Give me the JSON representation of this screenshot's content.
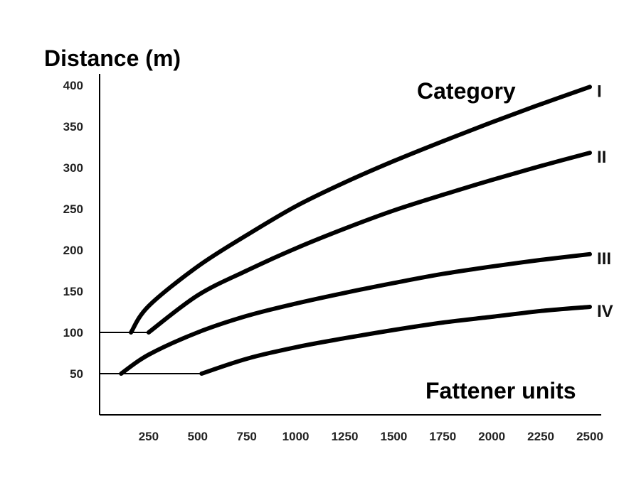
{
  "chart_data": {
    "type": "line",
    "title": "",
    "ylabel": "Distance (m)",
    "xlabel": "Fattener units",
    "legend_title": "Category",
    "xlim": [
      0,
      2500
    ],
    "ylim": [
      0,
      400
    ],
    "x_ticks": [
      250,
      500,
      750,
      1000,
      1250,
      1500,
      1750,
      2000,
      2250,
      2500
    ],
    "y_ticks": [
      50,
      100,
      150,
      200,
      250,
      300,
      350,
      400
    ],
    "grid": false,
    "series": [
      {
        "name": "I",
        "baseline": 100,
        "x": [
          160,
          250,
          500,
          750,
          1000,
          1250,
          1500,
          1750,
          2000,
          2250,
          2500
        ],
        "y": [
          100,
          132,
          180,
          218,
          253,
          282,
          308,
          332,
          355,
          377,
          398
        ]
      },
      {
        "name": "II",
        "baseline": 100,
        "x": [
          250,
          500,
          750,
          1000,
          1250,
          1500,
          1750,
          2000,
          2250,
          2500
        ],
        "y": [
          100,
          145,
          175,
          202,
          226,
          248,
          267,
          285,
          302,
          318
        ]
      },
      {
        "name": "III",
        "baseline": 50,
        "x": [
          110,
          250,
          500,
          750,
          1000,
          1250,
          1500,
          1750,
          2000,
          2250,
          2500
        ],
        "y": [
          50,
          73,
          100,
          120,
          135,
          148,
          160,
          171,
          180,
          188,
          195
        ]
      },
      {
        "name": "IV",
        "baseline": 50,
        "x": [
          520,
          750,
          1000,
          1250,
          1500,
          1750,
          2000,
          2250,
          2500
        ],
        "y": [
          50,
          68,
          82,
          93,
          103,
          112,
          119,
          126,
          131
        ]
      }
    ]
  }
}
